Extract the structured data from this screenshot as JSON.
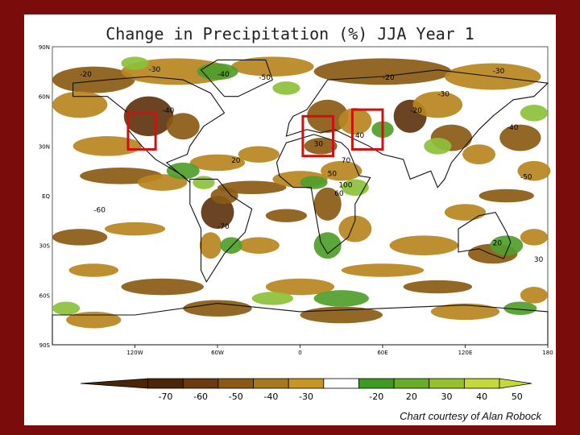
{
  "title": "Change in Precipitation (%) JJA Year 1",
  "credit": "Chart courtesy of Alan Robock",
  "lat_labels": [
    "90N",
    "60N",
    "30N",
    "EQ",
    "30S",
    "60S",
    "90S"
  ],
  "lon_labels": [
    "120W",
    "60W",
    "0",
    "60E",
    "120E",
    "180"
  ],
  "colorbar": {
    "labels": [
      "-70",
      "-60",
      "-50",
      "-40",
      "-30",
      "-20",
      "20",
      "30",
      "40",
      "50"
    ],
    "colors": [
      "#4a2508",
      "#6b3a0e",
      "#8a5a14",
      "#a8791c",
      "#c59623",
      "#ffffff",
      "#3f9a22",
      "#67ad26",
      "#94c12c",
      "#c5d83a"
    ]
  },
  "map_colors": {
    "dry_strong": "#5e3510",
    "dry_medium": "#8a5a14",
    "dry_light": "#b8861f",
    "wet_light": "#8cc03a",
    "wet_medium": "#4f9e2a",
    "highlight_box": "#d01010"
  },
  "contour_labels": [
    "-20",
    "-30",
    "-40",
    "-50",
    "-20",
    "-30",
    "-40",
    "20",
    "30",
    "40",
    "50",
    "60",
    "70",
    "100",
    "-60",
    "-70",
    "-20",
    "-30",
    "-40",
    "-50",
    "20",
    "30"
  ]
}
